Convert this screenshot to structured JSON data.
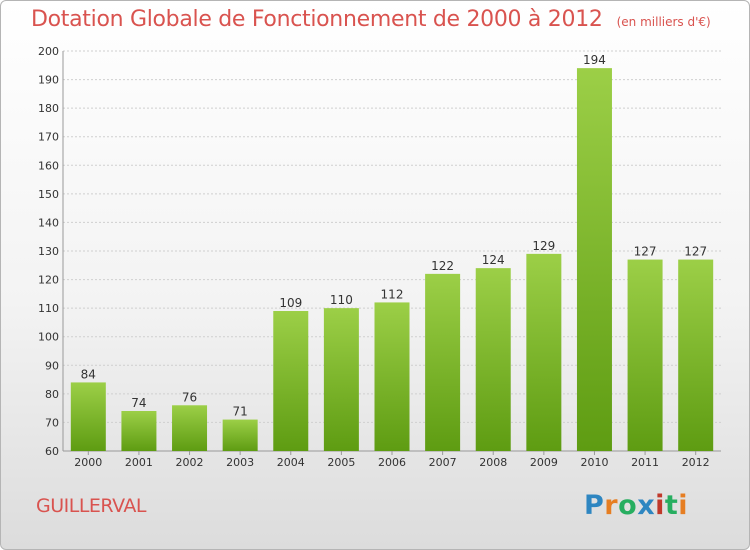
{
  "title": "Dotation Globale de Fonctionnement de 2000 à 2012",
  "unit_note": "(en milliers d'€)",
  "commune": "GUILLERVAL",
  "brand": "Proxiti",
  "brand_letters": [
    {
      "char": "P",
      "color": "#2e86c1"
    },
    {
      "char": "r",
      "color": "#e67e22"
    },
    {
      "char": "o",
      "color": "#27ae60"
    },
    {
      "char": "x",
      "color": "#2e86c1"
    },
    {
      "char": "i",
      "color": "#c0392b"
    },
    {
      "char": "t",
      "color": "#27ae60"
    },
    {
      "char": "i",
      "color": "#e67e22"
    }
  ],
  "colors": {
    "title": "#d9534f",
    "bar_light": "#9ccf47",
    "bar_dark": "#5e9c12",
    "grid": "#cfcfcf"
  },
  "chart_data": {
    "type": "bar",
    "title": "Dotation Globale de Fonctionnement de 2000 à 2012",
    "subtitle": "(en milliers d'€)",
    "categories": [
      "2000",
      "2001",
      "2002",
      "2003",
      "2004",
      "2005",
      "2006",
      "2007",
      "2008",
      "2009",
      "2010",
      "2011",
      "2012"
    ],
    "values": [
      84,
      74,
      76,
      71,
      109,
      110,
      112,
      122,
      124,
      129,
      194,
      127,
      127
    ],
    "ylim": [
      60,
      200
    ],
    "yticks": [
      60,
      70,
      80,
      90,
      100,
      110,
      120,
      130,
      140,
      150,
      160,
      170,
      180,
      190,
      200
    ],
    "grid": true,
    "xlabel": "",
    "ylabel": ""
  }
}
